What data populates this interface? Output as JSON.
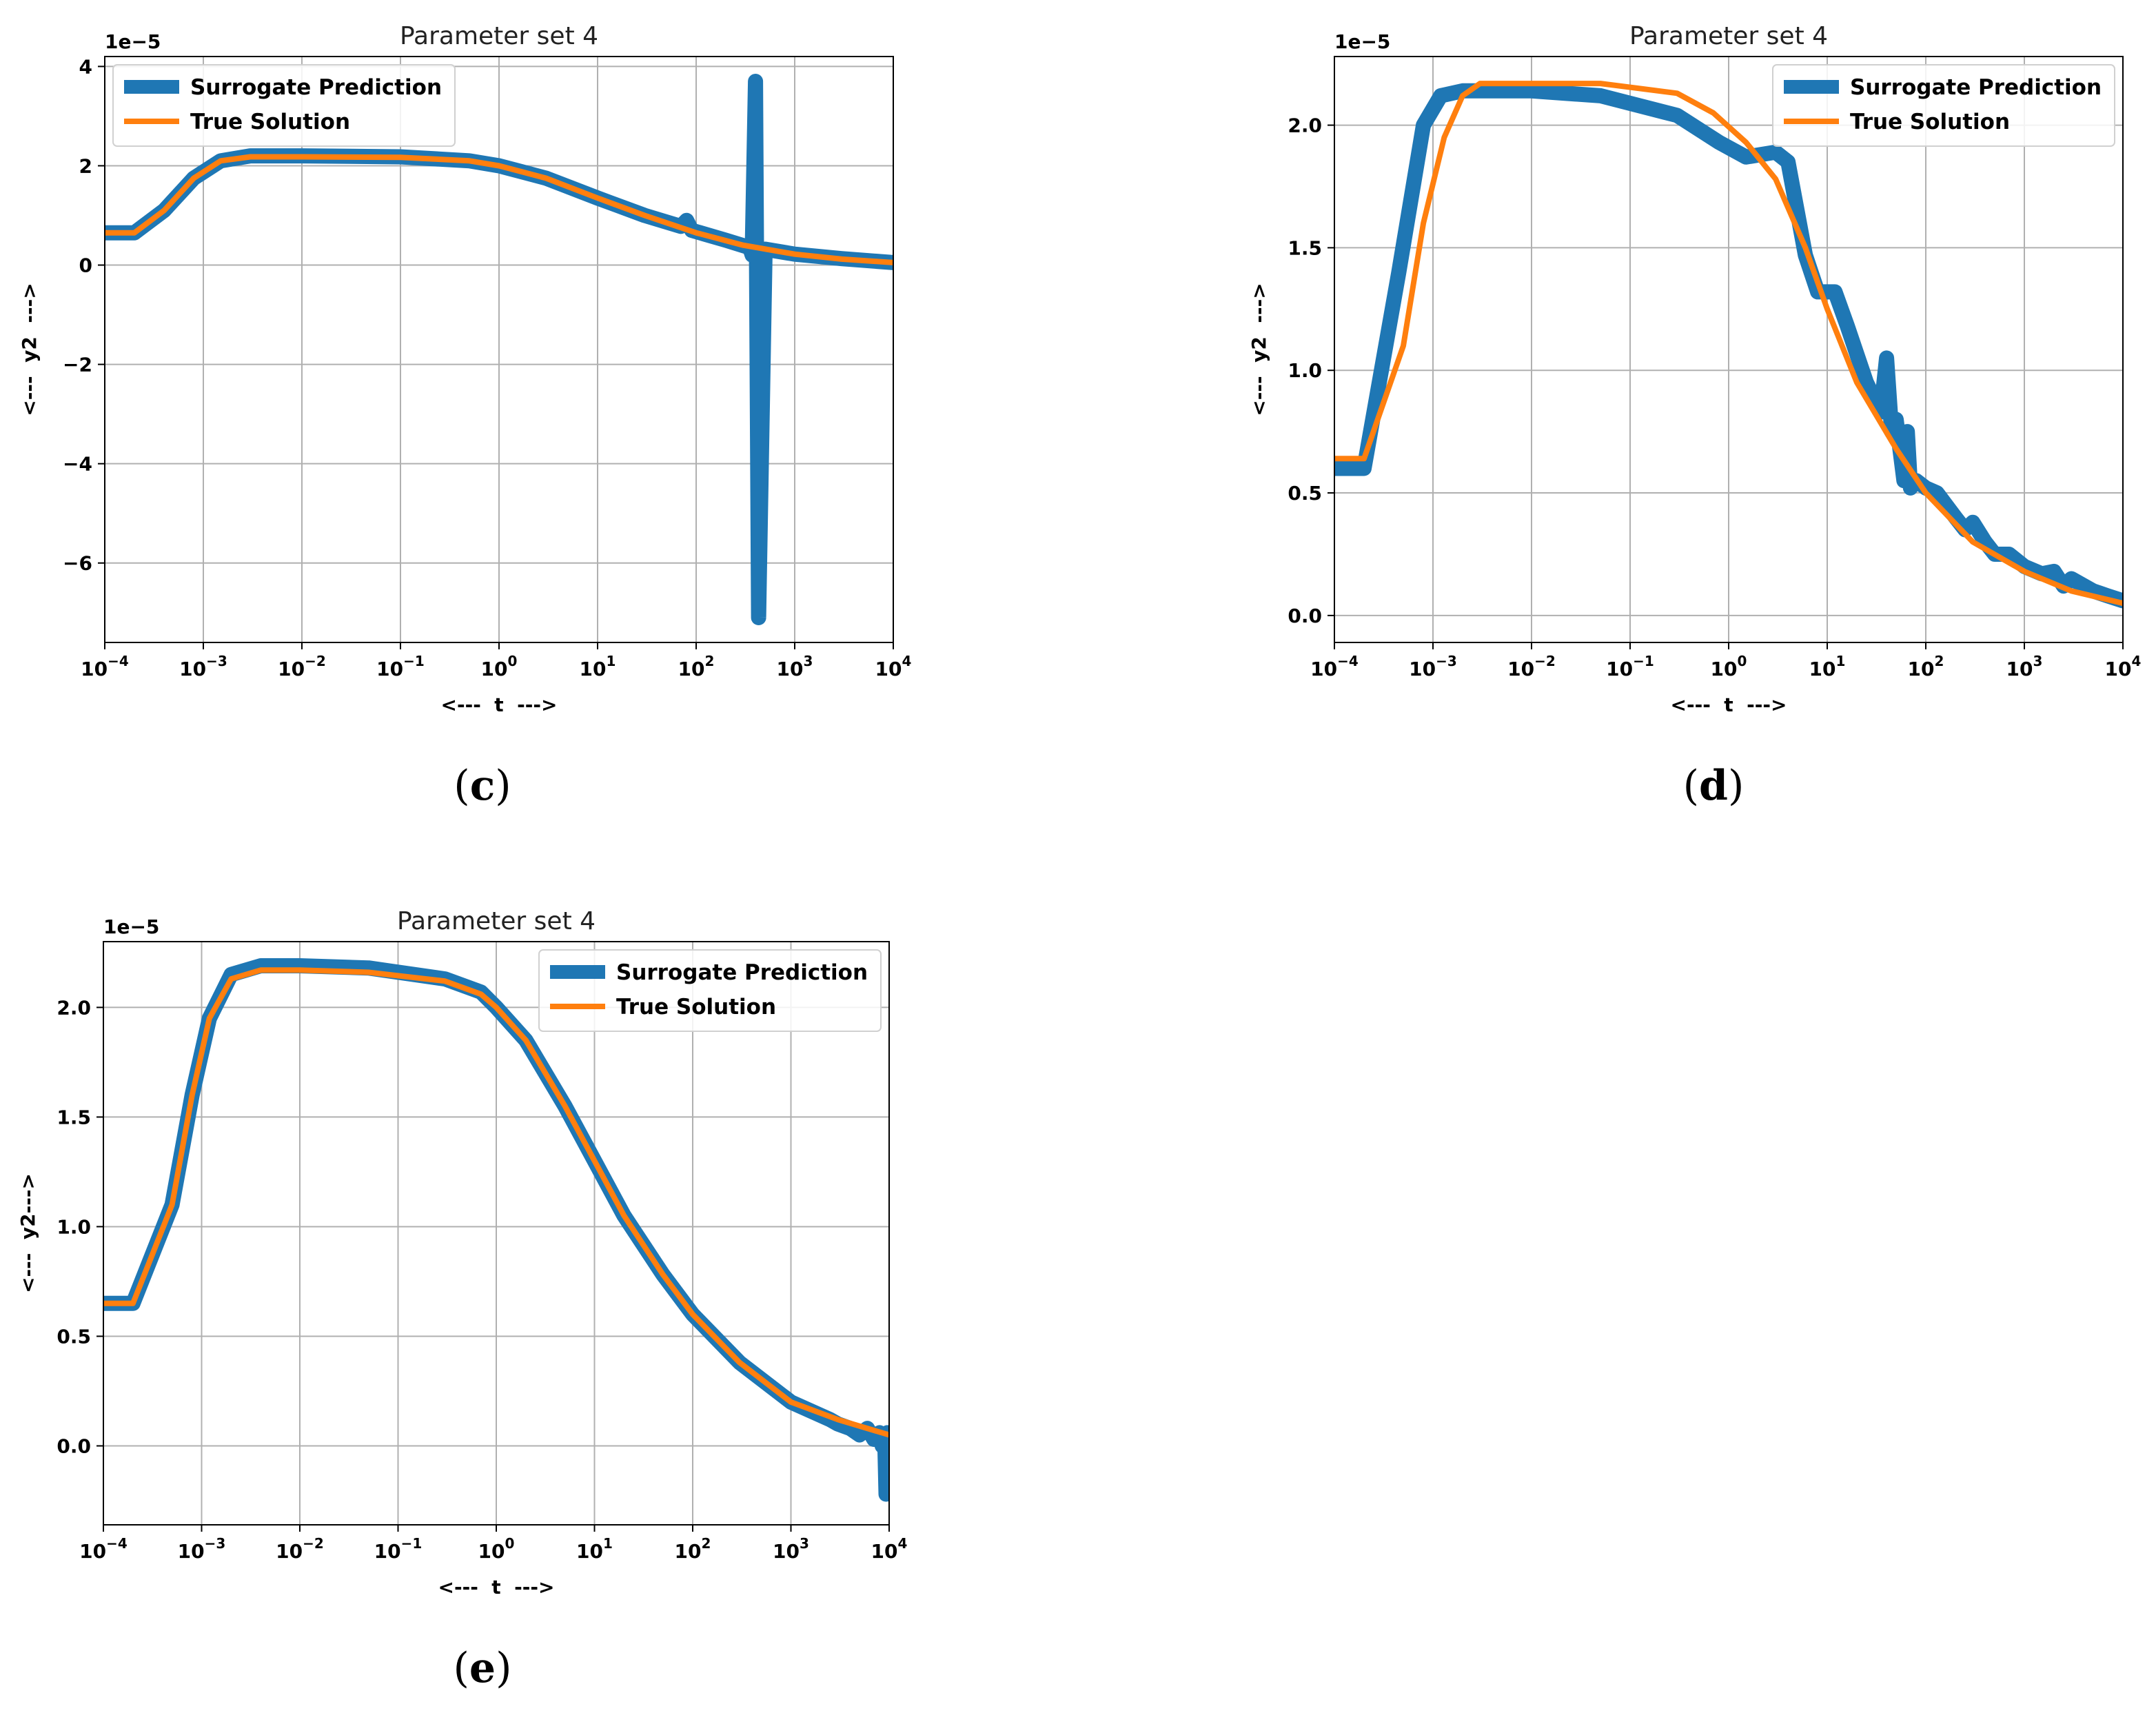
{
  "colors": {
    "surrogate": "#1f77b4",
    "true_solution": "#ff7f0e",
    "grid": "#b0b0b0"
  },
  "chart_data": [
    {
      "type": "line",
      "panel": "c",
      "caption": "(c)",
      "title": "Parameter set 4",
      "xlabel": "<---  t  --->",
      "ylabel": "<---  y2  --->",
      "offset_text": "1e−5",
      "x_scale": "log",
      "xlim": [
        0.0001,
        10000
      ],
      "ylim": [
        -7.6,
        4.2
      ],
      "x_ticks": [
        0.0001,
        0.001,
        0.01,
        0.1,
        1,
        10,
        100,
        1000,
        10000
      ],
      "x_tick_labels": [
        [
          "10",
          "−4"
        ],
        [
          "10",
          "−3"
        ],
        [
          "10",
          "−2"
        ],
        [
          "10",
          "−1"
        ],
        [
          "10",
          "0"
        ],
        [
          "10",
          "1"
        ],
        [
          "10",
          "2"
        ],
        [
          "10",
          "3"
        ],
        [
          "10",
          "4"
        ]
      ],
      "y_ticks": [
        4,
        2,
        0,
        -2,
        -4,
        -6
      ],
      "y_tick_labels": [
        "4",
        "2",
        "0",
        "−2",
        "−4",
        "−6"
      ],
      "legend_position": "upper-left",
      "series": [
        {
          "name": "Surrogate Prediction",
          "x": [
            0.0001,
            0.0002,
            0.0004,
            0.0008,
            0.0015,
            0.003,
            0.01,
            0.1,
            0.5,
            1,
            3,
            10,
            30,
            70,
            80,
            90,
            200,
            350,
            370,
            400,
            430,
            500,
            1000,
            3000,
            10000
          ],
          "y": [
            0.65,
            0.65,
            1.1,
            1.75,
            2.1,
            2.2,
            2.2,
            2.18,
            2.1,
            2.0,
            1.75,
            1.35,
            1.0,
            0.78,
            0.9,
            0.7,
            0.5,
            0.35,
            0.2,
            3.7,
            -7.1,
            0.32,
            0.22,
            0.13,
            0.05
          ]
        },
        {
          "name": "True Solution",
          "x": [
            0.0001,
            0.0002,
            0.0004,
            0.0008,
            0.0015,
            0.003,
            0.01,
            0.1,
            0.5,
            1,
            3,
            10,
            30,
            100,
            300,
            1000,
            3000,
            10000
          ],
          "y": [
            0.65,
            0.65,
            1.1,
            1.75,
            2.1,
            2.18,
            2.18,
            2.17,
            2.1,
            2.0,
            1.75,
            1.35,
            1.0,
            0.65,
            0.4,
            0.22,
            0.12,
            0.05
          ]
        }
      ]
    },
    {
      "type": "line",
      "panel": "d",
      "caption": "(d)",
      "title": "Parameter set 4",
      "xlabel": "<---  t  --->",
      "ylabel": "<---  y2  --->",
      "offset_text": "1e−5",
      "x_scale": "log",
      "xlim": [
        0.0001,
        10000
      ],
      "ylim": [
        -0.11,
        2.28
      ],
      "x_ticks": [
        0.0001,
        0.001,
        0.01,
        0.1,
        1,
        10,
        100,
        1000,
        10000
      ],
      "x_tick_labels": [
        [
          "10",
          "−4"
        ],
        [
          "10",
          "−3"
        ],
        [
          "10",
          "−2"
        ],
        [
          "10",
          "−1"
        ],
        [
          "10",
          "0"
        ],
        [
          "10",
          "1"
        ],
        [
          "10",
          "2"
        ],
        [
          "10",
          "3"
        ],
        [
          "10",
          "4"
        ]
      ],
      "y_ticks": [
        2.0,
        1.5,
        1.0,
        0.5,
        0.0
      ],
      "y_tick_labels": [
        "2.0",
        "1.5",
        "1.0",
        "0.5",
        "0.0"
      ],
      "legend_position": "upper-right",
      "series": [
        {
          "name": "Surrogate Prediction",
          "x": [
            0.0001,
            0.0002,
            0.00045,
            0.0008,
            0.0012,
            0.002,
            0.01,
            0.05,
            0.3,
            0.8,
            1.5,
            3,
            4,
            6,
            8,
            12,
            16,
            25,
            35,
            40,
            45,
            50,
            60,
            65,
            70,
            80,
            100,
            130,
            200,
            250,
            300,
            400,
            500,
            700,
            1000,
            1500,
            2000,
            2500,
            3000,
            5000,
            7000,
            10000
          ],
          "y": [
            0.6,
            0.6,
            1.4,
            2.0,
            2.12,
            2.14,
            2.14,
            2.12,
            2.04,
            1.93,
            1.87,
            1.89,
            1.85,
            1.47,
            1.32,
            1.32,
            1.18,
            0.95,
            0.83,
            1.05,
            0.75,
            0.8,
            0.55,
            0.75,
            0.52,
            0.55,
            0.52,
            0.5,
            0.4,
            0.35,
            0.38,
            0.3,
            0.25,
            0.25,
            0.2,
            0.17,
            0.18,
            0.12,
            0.15,
            0.1,
            0.08,
            0.06
          ]
        },
        {
          "name": "True Solution",
          "x": [
            0.0001,
            0.0002,
            0.0005,
            0.0008,
            0.0013,
            0.002,
            0.003,
            0.01,
            0.05,
            0.3,
            0.7,
            1.5,
            3,
            6,
            10,
            20,
            50,
            100,
            300,
            1000,
            3000,
            10000
          ],
          "y": [
            0.64,
            0.64,
            1.1,
            1.6,
            1.95,
            2.12,
            2.17,
            2.17,
            2.17,
            2.13,
            2.05,
            1.93,
            1.78,
            1.5,
            1.25,
            0.95,
            0.68,
            0.5,
            0.3,
            0.18,
            0.1,
            0.05
          ]
        }
      ]
    },
    {
      "type": "line",
      "panel": "e",
      "caption": "(e)",
      "title": "Parameter set 4",
      "xlabel": "<---  t  --->",
      "ylabel": "<---  y2--->",
      "offset_text": "1e−5",
      "x_scale": "log",
      "xlim": [
        0.0001,
        10000
      ],
      "ylim": [
        -0.36,
        2.3
      ],
      "x_ticks": [
        0.0001,
        0.001,
        0.01,
        0.1,
        1,
        10,
        100,
        1000,
        10000
      ],
      "x_tick_labels": [
        [
          "10",
          "−4"
        ],
        [
          "10",
          "−3"
        ],
        [
          "10",
          "−2"
        ],
        [
          "10",
          "−1"
        ],
        [
          "10",
          "0"
        ],
        [
          "10",
          "1"
        ],
        [
          "10",
          "2"
        ],
        [
          "10",
          "3"
        ],
        [
          "10",
          "4"
        ]
      ],
      "y_ticks": [
        2.0,
        1.5,
        1.0,
        0.5,
        0.0
      ],
      "y_tick_labels": [
        "2.0",
        "1.5",
        "1.0",
        "0.5",
        "0.0"
      ],
      "legend_position": "upper-right",
      "series": [
        {
          "name": "Surrogate Prediction",
          "x": [
            0.0001,
            0.0002,
            0.0005,
            0.0008,
            0.0012,
            0.002,
            0.004,
            0.01,
            0.05,
            0.3,
            0.7,
            1,
            2,
            5,
            10,
            20,
            50,
            100,
            300,
            1000,
            2500,
            3000,
            4000,
            5000,
            6000,
            7000,
            8000,
            8500,
            9000,
            9300,
            9600,
            10000
          ],
          "y": [
            0.65,
            0.65,
            1.1,
            1.6,
            1.95,
            2.15,
            2.19,
            2.19,
            2.18,
            2.13,
            2.07,
            2.0,
            1.85,
            1.55,
            1.3,
            1.05,
            0.78,
            0.6,
            0.38,
            0.2,
            0.12,
            0.1,
            0.08,
            0.05,
            0.08,
            0.03,
            0.06,
            0.0,
            0.05,
            -0.22,
            0.06,
            0.04
          ]
        },
        {
          "name": "True Solution",
          "x": [
            0.0001,
            0.0002,
            0.0005,
            0.0008,
            0.0012,
            0.002,
            0.004,
            0.01,
            0.05,
            0.3,
            0.7,
            1,
            2,
            5,
            10,
            20,
            50,
            100,
            300,
            1000,
            3000,
            10000
          ],
          "y": [
            0.65,
            0.65,
            1.1,
            1.6,
            1.95,
            2.13,
            2.17,
            2.17,
            2.16,
            2.12,
            2.06,
            2.0,
            1.85,
            1.55,
            1.3,
            1.05,
            0.78,
            0.6,
            0.38,
            0.2,
            0.12,
            0.05
          ]
        }
      ]
    }
  ]
}
